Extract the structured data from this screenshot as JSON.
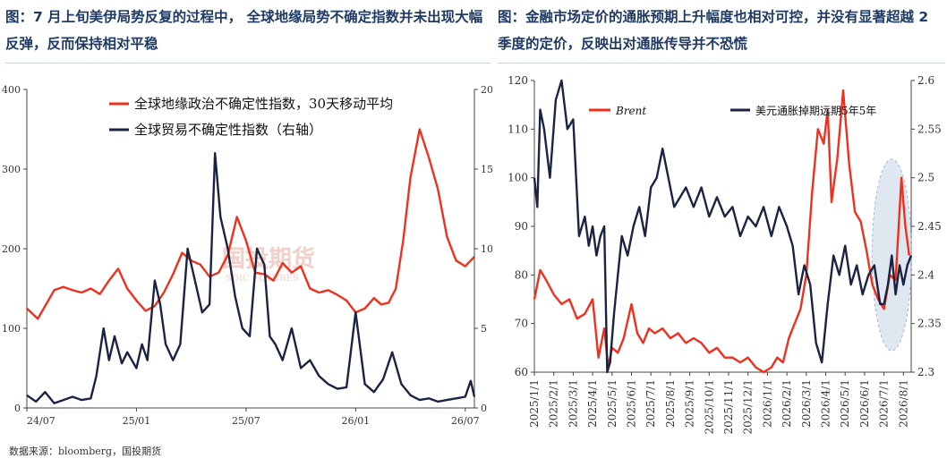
{
  "titles": {
    "left": "图：7 月上旬美伊局势反复的过程中， 全球地缘局势不确定指数并未出现大幅反弹，反而保持相对平稳",
    "right": "图：金融市场定价的通胀预期上升幅度也相对可控，并没有显著超越 2 季度的定价，反映出对通胀传导并不恐慌"
  },
  "source": "数据来源：bloomberg，国投期货",
  "watermark": {
    "cn": "国投期货",
    "en": "SDIC FUTURES"
  },
  "colors": {
    "red": "#f0301e",
    "navy": "#1b2342",
    "highlight": "#c5d3e6"
  },
  "chart_data": [
    {
      "type": "line",
      "x_ticks": [
        "24/07",
        "25/01",
        "25/07",
        "26/01",
        "26/07"
      ],
      "x_range": [
        0,
        24.5
      ],
      "y_left": {
        "min": 0,
        "max": 400,
        "ticks": [
          0,
          100,
          200,
          300,
          400
        ]
      },
      "y_right": {
        "min": 0,
        "max": 20,
        "ticks": [
          0,
          5,
          10,
          15,
          20
        ]
      },
      "legend_position": "top-left",
      "series": [
        {
          "name": "全球地缘政治不确定性指数，30天移动平均",
          "axis": "left",
          "color": "#f0301e",
          "x": [
            0,
            0.6,
            1.0,
            1.5,
            2.0,
            2.5,
            3.0,
            3.5,
            4.0,
            4.5,
            5.0,
            5.5,
            6.0,
            6.5,
            7.0,
            7.5,
            8.0,
            8.5,
            9.0,
            9.5,
            10.0,
            10.5,
            11.0,
            11.5,
            12.0,
            12.5,
            13.0,
            13.5,
            14.0,
            14.5,
            15.0,
            15.5,
            16.0,
            16.5,
            17.0,
            17.5,
            18.0,
            18.5,
            19.0,
            19.4,
            19.8,
            20.2,
            20.6,
            21.0,
            21.5,
            22.0,
            22.5,
            23.0,
            23.5,
            24.0,
            24.5
          ],
          "values": [
            125,
            112,
            128,
            148,
            152,
            148,
            145,
            150,
            143,
            160,
            175,
            150,
            135,
            122,
            128,
            145,
            168,
            195,
            185,
            180,
            165,
            170,
            192,
            240,
            210,
            170,
            168,
            160,
            182,
            170,
            178,
            150,
            145,
            148,
            142,
            135,
            120,
            125,
            138,
            130,
            132,
            150,
            210,
            290,
            350,
            315,
            275,
            215,
            185,
            178,
            190
          ]
        },
        {
          "name": "全球贸易不确定性指数（右轴）",
          "axis": "right",
          "color": "#1b2342",
          "x": [
            0,
            0.5,
            1.0,
            1.5,
            2.0,
            2.5,
            3.0,
            3.5,
            3.8,
            4.2,
            4.5,
            4.8,
            5.2,
            5.5,
            6.0,
            6.3,
            6.6,
            7.0,
            7.3,
            7.6,
            8.0,
            8.4,
            8.8,
            9.2,
            9.6,
            10.0,
            10.3,
            10.6,
            11.0,
            11.4,
            11.8,
            12.2,
            12.6,
            13.0,
            13.3,
            13.6,
            14.0,
            14.5,
            15.0,
            15.5,
            16.0,
            16.5,
            17.0,
            17.5,
            18.0,
            18.5,
            19.0,
            19.5,
            20.0,
            20.5,
            21.0,
            21.5,
            22.0,
            22.5,
            23.0,
            23.5,
            24.0,
            24.3,
            24.5
          ],
          "values": [
            0.8,
            0.4,
            1.0,
            0.3,
            0.5,
            0.7,
            0.5,
            0.6,
            2.0,
            5.0,
            3.0,
            4.5,
            2.8,
            3.5,
            2.5,
            4.0,
            3.0,
            8.0,
            6.5,
            4.0,
            3.0,
            4.0,
            10.0,
            8.0,
            6.0,
            6.5,
            16.0,
            12.0,
            10.0,
            7.0,
            5.0,
            4.5,
            10.0,
            9.0,
            4.5,
            4.0,
            3.0,
            5.0,
            2.5,
            3.0,
            2.0,
            1.5,
            1.2,
            1.3,
            6.0,
            1.5,
            1.0,
            1.8,
            3.5,
            1.5,
            0.8,
            0.5,
            0.6,
            0.4,
            0.5,
            0.6,
            0.7,
            1.7,
            0.7
          ]
        }
      ]
    },
    {
      "type": "line",
      "x_ticks": [
        "2025/1/1",
        "2025/2/1",
        "2025/3/1",
        "2025/4/1",
        "2025/5/1",
        "2025/6/1",
        "2025/7/1",
        "2025/8/1",
        "2025/9/1",
        "2025/10/1",
        "2025/11/1",
        "2025/12/1",
        "2026/1/1",
        "2026/2/1",
        "2026/3/1",
        "2026/4/1",
        "2026/5/1",
        "2026/6/1",
        "2026/7/1",
        "2026/8/1"
      ],
      "x_range": [
        0,
        19.4
      ],
      "y_left": {
        "min": 60,
        "max": 120,
        "ticks": [
          60,
          70,
          80,
          90,
          100,
          110,
          120
        ]
      },
      "y_right": {
        "min": 2.3,
        "max": 2.6,
        "ticks": [
          2.3,
          2.35,
          2.4,
          2.45,
          2.5,
          2.55,
          2.6
        ]
      },
      "legend_position": "top",
      "highlight": "ellipse around 2026/7–2026/8",
      "series": [
        {
          "name": "Brent",
          "axis": "left",
          "color": "#f0301e",
          "x": [
            0,
            0.3,
            0.6,
            1.0,
            1.4,
            1.8,
            2.2,
            2.6,
            3.0,
            3.3,
            3.6,
            3.8,
            4.0,
            4.3,
            4.6,
            5.0,
            5.3,
            5.6,
            5.9,
            6.2,
            6.6,
            7.0,
            7.4,
            7.8,
            8.2,
            8.6,
            9.0,
            9.4,
            9.8,
            10.2,
            10.6,
            11.0,
            11.4,
            11.8,
            12.2,
            12.5,
            12.8,
            13.1,
            13.4,
            13.7,
            14.0,
            14.3,
            14.6,
            14.9,
            15.1,
            15.3,
            15.6,
            15.9,
            16.2,
            16.5,
            16.8,
            17.1,
            17.4,
            17.7,
            18.0,
            18.3,
            18.6,
            18.9,
            19.1,
            19.3
          ],
          "values": [
            75,
            81,
            79,
            76,
            74,
            75,
            71,
            72,
            75,
            63,
            69,
            61,
            65,
            64,
            67,
            74,
            68,
            66,
            69,
            68,
            69,
            67,
            68,
            66,
            67,
            66,
            64,
            65,
            63,
            63,
            62,
            63,
            61,
            60,
            61,
            63,
            62,
            67,
            70,
            73,
            80,
            97,
            110,
            107,
            114,
            95,
            104,
            118,
            103,
            93,
            91,
            85,
            78,
            75,
            73,
            80,
            79,
            100,
            90,
            84
          ]
        },
        {
          "name": "美元通胀掉期远期5年5年",
          "axis": "right",
          "color": "#1b2342",
          "x": [
            0,
            0.15,
            0.3,
            0.5,
            0.8,
            1.1,
            1.4,
            1.7,
            2.0,
            2.3,
            2.6,
            2.8,
            3.0,
            3.2,
            3.4,
            3.6,
            3.75,
            3.9,
            4.1,
            4.3,
            4.5,
            4.8,
            5.1,
            5.4,
            5.7,
            6.0,
            6.3,
            6.6,
            6.9,
            7.2,
            7.5,
            7.8,
            8.2,
            8.6,
            9.0,
            9.4,
            9.8,
            10.2,
            10.6,
            11.0,
            11.4,
            11.8,
            12.2,
            12.6,
            13.0,
            13.3,
            13.6,
            13.9,
            14.2,
            14.5,
            14.8,
            15.1,
            15.4,
            15.7,
            16.0,
            16.3,
            16.6,
            16.9,
            17.2,
            17.5,
            17.8,
            18.0,
            18.2,
            18.4,
            18.6,
            18.8,
            19.0,
            19.2,
            19.4
          ],
          "values": [
            2.5,
            2.47,
            2.57,
            2.55,
            2.5,
            2.58,
            2.6,
            2.55,
            2.56,
            2.44,
            2.46,
            2.43,
            2.45,
            2.42,
            2.44,
            2.45,
            2.3,
            2.31,
            2.36,
            2.4,
            2.44,
            2.42,
            2.45,
            2.47,
            2.44,
            2.49,
            2.5,
            2.53,
            2.5,
            2.47,
            2.48,
            2.49,
            2.47,
            2.49,
            2.46,
            2.48,
            2.46,
            2.47,
            2.44,
            2.46,
            2.45,
            2.47,
            2.44,
            2.47,
            2.45,
            2.43,
            2.38,
            2.41,
            2.39,
            2.33,
            2.31,
            2.37,
            2.42,
            2.4,
            2.43,
            2.39,
            2.41,
            2.38,
            2.4,
            2.41,
            2.37,
            2.37,
            2.39,
            2.42,
            2.38,
            2.41,
            2.39,
            2.41,
            2.42
          ]
        }
      ]
    }
  ]
}
